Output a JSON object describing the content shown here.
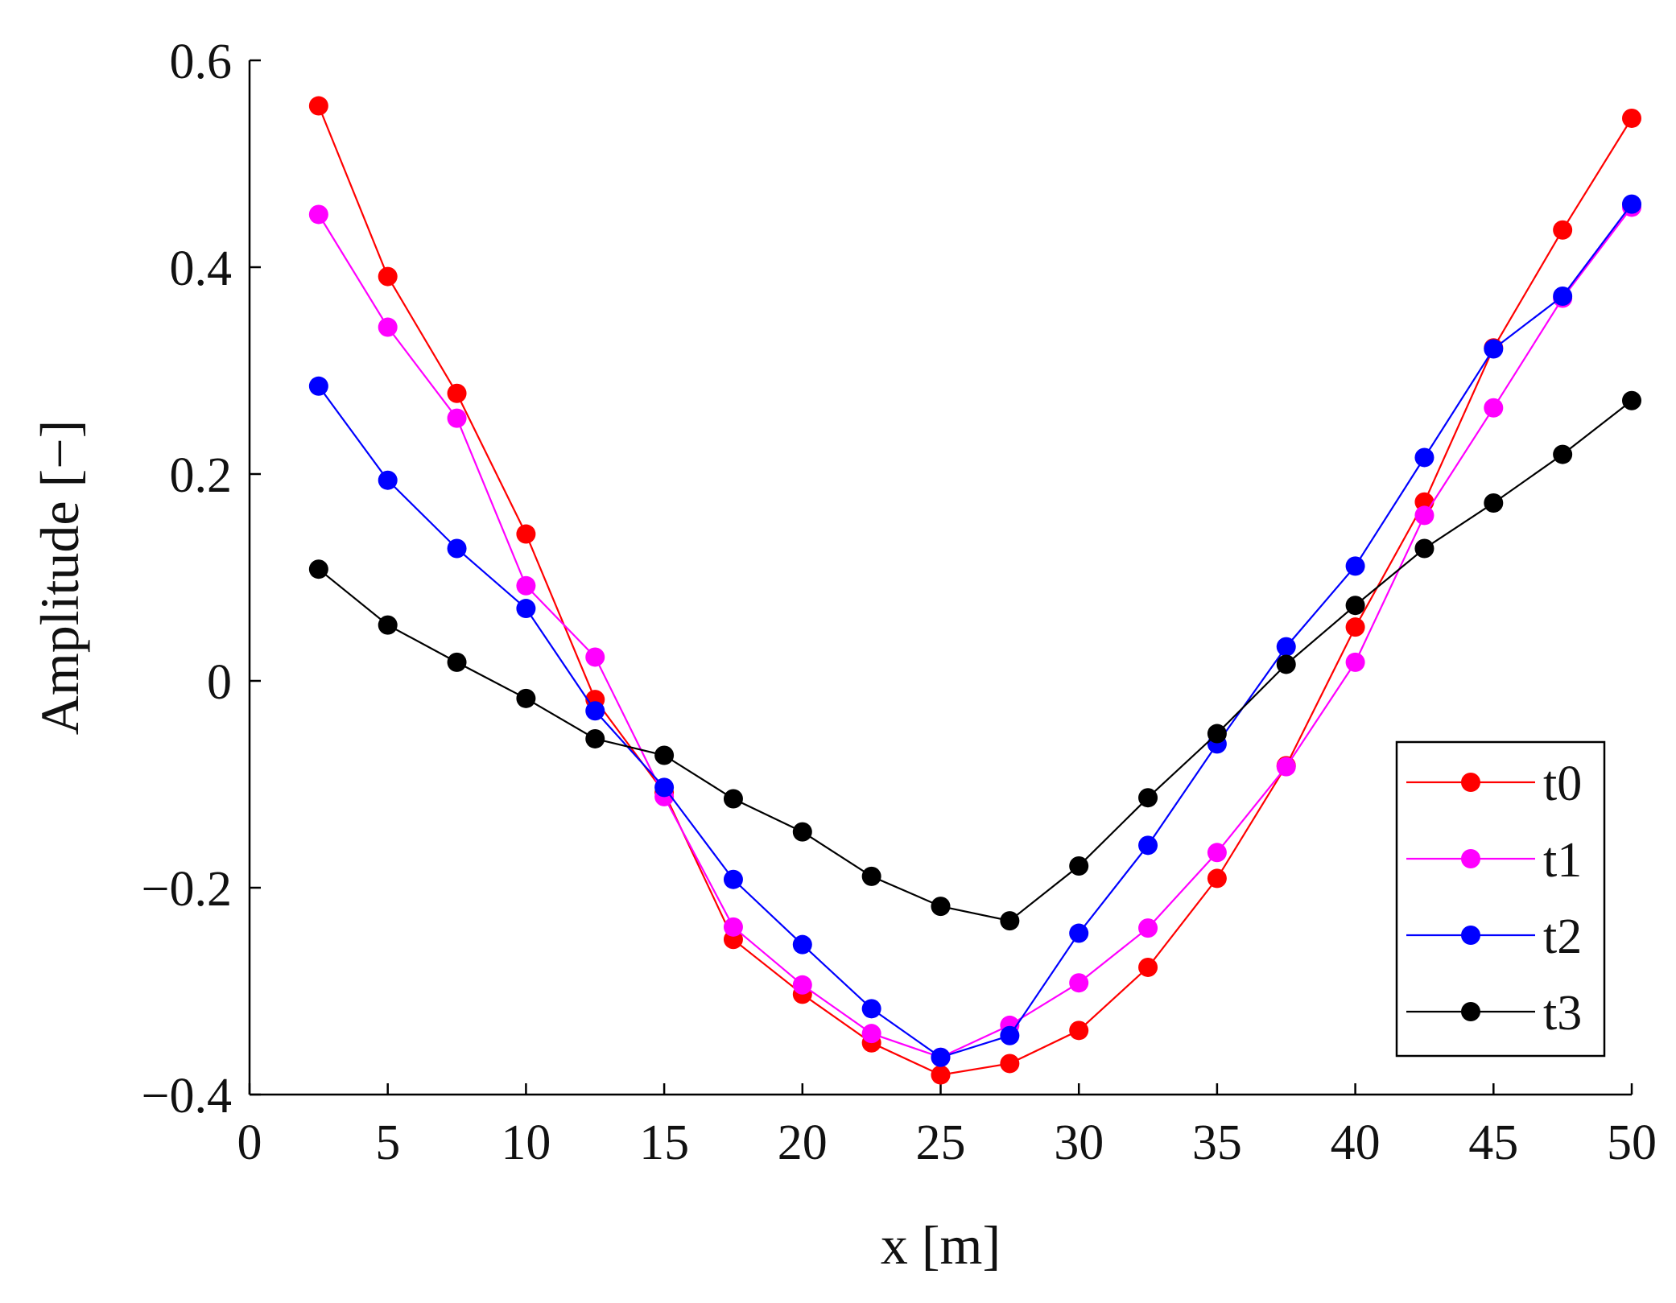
{
  "chart_data": {
    "type": "line",
    "title": "",
    "xlabel": "x [m]",
    "ylabel": "Amplitude [−]",
    "xlim": [
      0,
      50
    ],
    "ylim": [
      -0.4,
      0.6
    ],
    "xticks": [
      0,
      5,
      10,
      15,
      20,
      25,
      30,
      35,
      40,
      45,
      50
    ],
    "xtick_labels": [
      "0",
      "5",
      "10",
      "15",
      "20",
      "25",
      "30",
      "35",
      "40",
      "45",
      "50"
    ],
    "yticks": [
      -0.4,
      -0.2,
      0,
      0.2,
      0.4,
      0.6
    ],
    "ytick_labels": [
      "−0.4",
      "−0.2",
      "0",
      "0.2",
      "0.4",
      "0.6"
    ],
    "grid": false,
    "legend_position": "bottom-right",
    "x": [
      2.5,
      5,
      7.5,
      10,
      12.5,
      15,
      17.5,
      20,
      22.5,
      25,
      27.5,
      30,
      32.5,
      35,
      37.5,
      40,
      42.5,
      45,
      47.5,
      50
    ],
    "series": [
      {
        "name": "t0",
        "color": "#ff0000",
        "values": [
          0.556,
          0.391,
          0.278,
          0.142,
          -0.018,
          -0.108,
          -0.25,
          -0.303,
          -0.35,
          -0.381,
          -0.37,
          -0.338,
          -0.277,
          -0.191,
          -0.082,
          0.052,
          0.173,
          0.322,
          0.436,
          0.544
        ]
      },
      {
        "name": "t1",
        "color": "#ff00ff",
        "values": [
          0.451,
          0.342,
          0.254,
          0.092,
          0.023,
          -0.112,
          -0.238,
          -0.294,
          -0.341,
          -0.364,
          -0.333,
          -0.292,
          -0.239,
          -0.166,
          -0.083,
          0.018,
          0.16,
          0.264,
          0.37,
          0.458
        ]
      },
      {
        "name": "t2",
        "color": "#0000ff",
        "values": [
          0.285,
          0.194,
          0.128,
          0.07,
          -0.029,
          -0.103,
          -0.192,
          -0.255,
          -0.317,
          -0.364,
          -0.343,
          -0.244,
          -0.159,
          -0.061,
          0.033,
          0.111,
          0.216,
          0.321,
          0.372,
          0.461
        ]
      },
      {
        "name": "t3",
        "color": "#000000",
        "values": [
          0.108,
          0.054,
          0.018,
          -0.017,
          -0.056,
          -0.072,
          -0.114,
          -0.146,
          -0.189,
          -0.218,
          -0.232,
          -0.179,
          -0.113,
          -0.051,
          0.016,
          0.073,
          0.128,
          0.172,
          0.219,
          0.271
        ]
      }
    ]
  }
}
